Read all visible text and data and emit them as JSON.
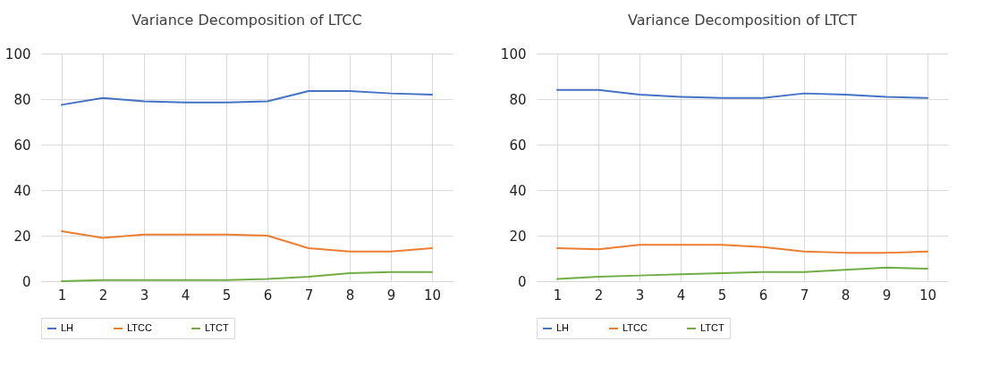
{
  "chart_data": [
    {
      "type": "line",
      "title": "Variance Decomposition of LTCC",
      "categories": [
        "1",
        "2",
        "3",
        "4",
        "5",
        "6",
        "7",
        "8",
        "9",
        "10"
      ],
      "series": [
        {
          "name": "LH",
          "color": "#4472c4",
          "values": [
            77.5,
            80.5,
            79,
            78.5,
            78.5,
            79,
            83.5,
            83.5,
            82.5,
            82
          ]
        },
        {
          "name": "LTCC",
          "color": "#ed7d31",
          "values": [
            22,
            19,
            20.5,
            20.5,
            20.5,
            20,
            14.5,
            13,
            13,
            14.5
          ]
        },
        {
          "name": "LTCT",
          "color": "#70ad47",
          "values": [
            0,
            0.5,
            0.5,
            0.5,
            0.5,
            1,
            2,
            3.5,
            4,
            4
          ]
        }
      ],
      "ylim": [
        0,
        100
      ],
      "yticks": [
        0,
        20,
        40,
        60,
        80,
        100
      ],
      "grid": true,
      "legend": "bottom"
    },
    {
      "type": "line",
      "title": "Variance Decomposition of LTCT",
      "categories": [
        "1",
        "2",
        "3",
        "4",
        "5",
        "6",
        "7",
        "8",
        "9",
        "10"
      ],
      "series": [
        {
          "name": "LH",
          "color": "#4472c4",
          "values": [
            84,
            84,
            82,
            81,
            80.5,
            80.5,
            82.5,
            82,
            81,
            80.5
          ]
        },
        {
          "name": "LTCC",
          "color": "#ed7d31",
          "values": [
            14.5,
            14,
            16,
            16,
            16,
            15,
            13,
            12.5,
            12.5,
            13
          ]
        },
        {
          "name": "LTCT",
          "color": "#70ad47",
          "values": [
            1,
            2,
            2.5,
            3,
            3.5,
            4,
            4,
            5,
            6,
            5.5
          ]
        }
      ],
      "ylim": [
        0,
        100
      ],
      "yticks": [
        0,
        20,
        40,
        60,
        80,
        100
      ],
      "grid": true,
      "legend": "bottom"
    }
  ]
}
